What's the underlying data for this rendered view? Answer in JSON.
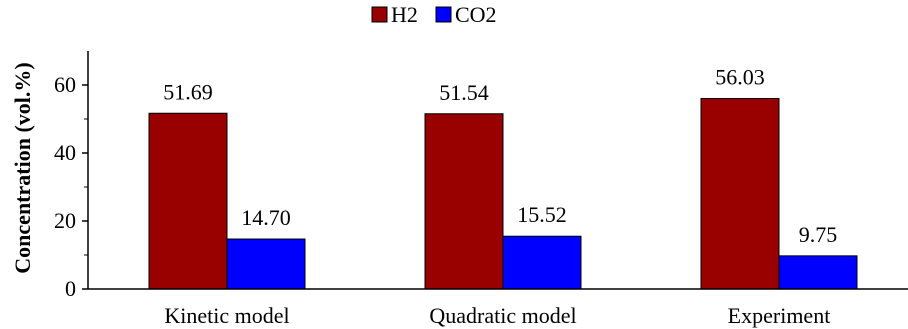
{
  "chart_data": {
    "type": "bar",
    "title": "",
    "xlabel": "",
    "ylabel": "Concentration (vol.%)",
    "ylim": [
      0,
      70
    ],
    "yticks": [
      0,
      20,
      40,
      60
    ],
    "grid": false,
    "legend_position": "top-center",
    "categories": [
      "Kinetic model",
      "Quadratic model",
      "Experiment"
    ],
    "series": [
      {
        "name": "H2",
        "color": "#990000",
        "values": [
          51.69,
          51.54,
          56.03
        ],
        "labels": [
          "51.69",
          "51.54",
          "56.03"
        ]
      },
      {
        "name": "CO2",
        "color": "#0000FF",
        "values": [
          14.7,
          15.52,
          9.75
        ],
        "labels": [
          "14.70",
          "15.52",
          "9.75"
        ]
      }
    ]
  }
}
